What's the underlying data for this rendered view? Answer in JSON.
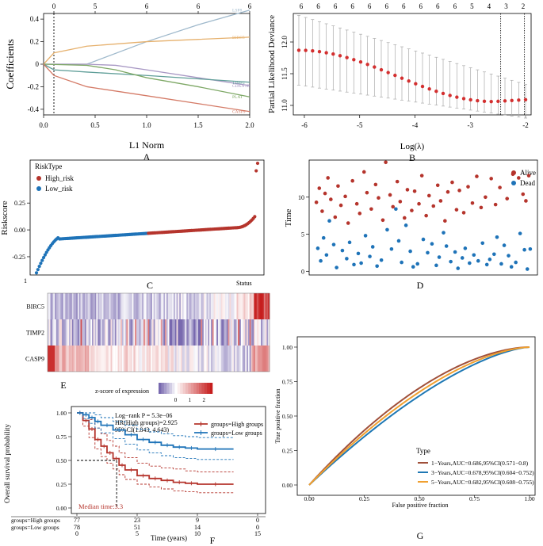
{
  "panel_labels": {
    "A": "A",
    "B": "B",
    "C": "C",
    "D": "D",
    "E": "E",
    "F": "F",
    "G": "G"
  },
  "colors": {
    "high": "#B5342C",
    "low": "#1E73B8",
    "bar_red": "#D32F2F",
    "grey": "#999999"
  },
  "chart_data": [
    {
      "id": "A",
      "type": "line",
      "title": "",
      "xlabel": "L1 Norm",
      "ylabel": "Coefficients",
      "xlim": [
        0,
        2.0
      ],
      "ylim": [
        -0.45,
        0.45
      ],
      "xticks": [
        "0.0",
        "0.5",
        "1.0",
        "1.5",
        "2.0"
      ],
      "yticks": [
        "-0.4",
        "-0.2",
        "0",
        "0.2",
        "0.4"
      ],
      "top_ticks": [
        {
          "x": 0.1,
          "label": "0"
        },
        {
          "x": 0.5,
          "label": "5"
        },
        {
          "x": 1.0,
          "label": "6"
        },
        {
          "x": 1.5,
          "label": "6"
        },
        {
          "x": 2.0,
          "label": "6"
        }
      ],
      "vline": 0.1,
      "series": [
        {
          "name": "LSP8",
          "color": "#9FB9CC",
          "x": [
            0,
            0.42,
            1.0,
            1.5,
            2.0
          ],
          "values": [
            0,
            0,
            0.2,
            0.35,
            0.48
          ]
        },
        {
          "name": "BIRC5",
          "color": "#E6B16E",
          "x": [
            0,
            0.1,
            0.42,
            1.0,
            1.5,
            2.0
          ],
          "values": [
            0,
            0.1,
            0.16,
            0.2,
            0.22,
            0.24
          ]
        },
        {
          "name": "CDKN1B",
          "color": "#A898C4",
          "x": [
            0,
            0.42,
            0.7,
            1.0,
            1.5,
            2.0
          ],
          "values": [
            0,
            0,
            -0.01,
            -0.05,
            -0.12,
            -0.19
          ]
        },
        {
          "name": "TIMP2",
          "color": "#5F9E98",
          "x": [
            0,
            0.1,
            0.42,
            1.0,
            1.5,
            2.0
          ],
          "values": [
            0,
            -0.05,
            -0.07,
            -0.1,
            -0.13,
            -0.16
          ]
        },
        {
          "name": "PLAT",
          "color": "#7EA866",
          "x": [
            0,
            0.42,
            0.7,
            1.0,
            1.5,
            2.0
          ],
          "values": [
            0,
            -0.01,
            -0.05,
            -0.12,
            -0.2,
            -0.29
          ]
        },
        {
          "name": "CASP9",
          "color": "#D47A66",
          "x": [
            0,
            0.1,
            0.42,
            1.0,
            1.5,
            2.0
          ],
          "values": [
            0,
            -0.1,
            -0.2,
            -0.28,
            -0.35,
            -0.42
          ]
        }
      ]
    },
    {
      "id": "B",
      "type": "scatter",
      "title": "",
      "xlabel": "Log(λ)",
      "ylabel": "Partial Likelihood Deviance",
      "xlim": [
        -6.2,
        -1.9
      ],
      "ylim": [
        10.85,
        12.45
      ],
      "xticks": [
        "-6",
        "-5",
        "-4",
        "-3",
        "-2"
      ],
      "yticks": [
        "11.0",
        "11.5",
        "12.0"
      ],
      "top_ticks": [
        "6",
        "6",
        "6",
        "6",
        "6",
        "6",
        "6",
        "6",
        "6",
        "6",
        "5",
        "4",
        "3",
        "2"
      ],
      "vlines": [
        -2.45,
        -2.02
      ],
      "lambda_range": [
        -6.1,
        -2.0
      ],
      "n_points": 34,
      "deviance": {
        "start": 11.87,
        "min": 11.06,
        "end": 11.09
      },
      "err_upper": {
        "start": 12.42,
        "end": 11.33
      },
      "err_lower": {
        "start": 11.32,
        "end": 10.8
      }
    },
    {
      "id": "C",
      "type": "scatter",
      "title": "",
      "ylabel": "Riskscore",
      "legend_title": "RiskType",
      "legend": [
        "High_risk",
        "Low_risk"
      ],
      "yticks": [
        "-0.25",
        "0.00",
        "0.25"
      ],
      "ylim": [
        -0.42,
        0.65
      ],
      "n": 155,
      "n_low": 78,
      "labels": {
        "left_tick": "1",
        "status": "Status"
      }
    },
    {
      "id": "D",
      "type": "scatter",
      "title": "",
      "ylabel": "Time",
      "legend": [
        "Alive",
        "Dead"
      ],
      "yticks": [
        "0",
        "5",
        "10"
      ],
      "ylim": [
        -0.5,
        15
      ],
      "alive_points": [
        [
          5,
          9.3
        ],
        [
          7,
          11.2
        ],
        [
          9,
          8.1
        ],
        [
          11,
          10.5
        ],
        [
          13,
          12.6
        ],
        [
          15,
          9.7
        ],
        [
          18,
          7.3
        ],
        [
          20,
          11.5
        ],
        [
          22,
          8.9
        ],
        [
          25,
          10.1
        ],
        [
          27,
          6.5
        ],
        [
          30,
          12.2
        ],
        [
          33,
          9.1
        ],
        [
          35,
          7.8
        ],
        [
          38,
          13.4
        ],
        [
          40,
          10.6
        ],
        [
          43,
          8.4
        ],
        [
          46,
          11.7
        ],
        [
          48,
          9.9
        ],
        [
          51,
          6.9
        ],
        [
          53,
          14.7
        ],
        [
          56,
          10.3
        ],
        [
          58,
          8.7
        ],
        [
          61,
          12.1
        ],
        [
          63,
          9.4
        ],
        [
          66,
          7.2
        ],
        [
          68,
          11.0
        ],
        [
          71,
          8.2
        ],
        [
          73,
          10.8
        ],
        [
          76,
          9.1
        ],
        [
          78,
          12.9
        ],
        [
          81,
          7.5
        ],
        [
          83,
          10.2
        ],
        [
          86,
          8.8
        ],
        [
          89,
          11.6
        ],
        [
          91,
          9.5
        ],
        [
          94,
          6.8
        ],
        [
          96,
          10.7
        ],
        [
          99,
          12.0
        ],
        [
          102,
          8.3
        ],
        [
          104,
          10.9
        ],
        [
          107,
          7.9
        ],
        [
          110,
          11.4
        ],
        [
          113,
          9.2
        ],
        [
          116,
          12.8
        ],
        [
          119,
          8.6
        ],
        [
          122,
          10.0
        ],
        [
          126,
          12.5
        ],
        [
          129,
          9.0
        ],
        [
          132,
          11.3
        ],
        [
          137,
          9.8
        ],
        [
          141,
          13.1
        ],
        [
          145,
          12.6
        ],
        [
          148,
          10.4
        ],
        [
          150,
          9.5
        ],
        [
          152,
          12.9
        ]
      ],
      "dead_points": [
        [
          6,
          3.1
        ],
        [
          8,
          1.4
        ],
        [
          10,
          4.5
        ],
        [
          12,
          2.2
        ],
        [
          14,
          6.8
        ],
        [
          17,
          3.6
        ],
        [
          19,
          0.5
        ],
        [
          23,
          2.8
        ],
        [
          26,
          1.7
        ],
        [
          28,
          3.9
        ],
        [
          31,
          0.9
        ],
        [
          34,
          2.4
        ],
        [
          36,
          1.1
        ],
        [
          39,
          4.8
        ],
        [
          42,
          2.0
        ],
        [
          44,
          3.3
        ],
        [
          47,
          0.7
        ],
        [
          50,
          1.5
        ],
        [
          54,
          5.6
        ],
        [
          57,
          3.0
        ],
        [
          60,
          8.4
        ],
        [
          62,
          4.1
        ],
        [
          64,
          1.2
        ],
        [
          67,
          6.2
        ],
        [
          70,
          2.7
        ],
        [
          72,
          0.6
        ],
        [
          75,
          1.0
        ],
        [
          79,
          4.3
        ],
        [
          82,
          2.5
        ],
        [
          85,
          3.7
        ],
        [
          88,
          0.8
        ],
        [
          90,
          1.9
        ],
        [
          93,
          5.2
        ],
        [
          95,
          3.4
        ],
        [
          98,
          1.3
        ],
        [
          101,
          2.6
        ],
        [
          103,
          0.4
        ],
        [
          106,
          1.8
        ],
        [
          108,
          3.1
        ],
        [
          111,
          1.1
        ],
        [
          114,
          2.2
        ],
        [
          117,
          1.4
        ],
        [
          120,
          3.8
        ],
        [
          123,
          0.9
        ],
        [
          125,
          1.6
        ],
        [
          128,
          2.3
        ],
        [
          130,
          4.6
        ],
        [
          133,
          1.0
        ],
        [
          135,
          3.5
        ],
        [
          138,
          2.1
        ],
        [
          140,
          0.6
        ],
        [
          143,
          1.2
        ],
        [
          146,
          5.1
        ],
        [
          149,
          2.9
        ],
        [
          151,
          0.3
        ],
        [
          153,
          3.0
        ]
      ]
    },
    {
      "id": "E",
      "type": "heatmap",
      "title": "",
      "rows": [
        "BIRC5",
        "TIMP2",
        "CASP9"
      ],
      "n_cols": 155,
      "legend_title": "z-score of expression",
      "legend_ticks": [
        "0",
        "1",
        "2"
      ],
      "low_color": "#5B3C99",
      "mid_color": "#FFFFFF",
      "high_color": "#C62828"
    },
    {
      "id": "F",
      "type": "line",
      "title": "",
      "xlabel": "Time (years)",
      "ylabel": "Overall survival probability",
      "xlim": [
        0,
        15
      ],
      "ylim": [
        0,
        1
      ],
      "xticks": [
        "0",
        "5",
        "10",
        "15"
      ],
      "yticks": [
        "0.00",
        "0.25",
        "0.50",
        "0.75",
        "1.00"
      ],
      "annotations": [
        "Log−rank P = 5.3e−06",
        "HR(High groups)=2.925",
        "95%CI(1.843, 4.643)",
        "Median time:3.3"
      ],
      "legend": [
        "groups=High groups",
        "groups=Low groups"
      ],
      "median_time": 3.3,
      "series": [
        {
          "name": "groups=High groups",
          "x": [
            0,
            0.5,
            1.0,
            1.5,
            2.0,
            2.5,
            3.0,
            3.5,
            4.0,
            5.0,
            6.0,
            7.0,
            8.0,
            9.0,
            10.0,
            13.0
          ],
          "values": [
            1.0,
            0.92,
            0.83,
            0.72,
            0.65,
            0.58,
            0.52,
            0.45,
            0.4,
            0.34,
            0.31,
            0.29,
            0.27,
            0.26,
            0.25,
            0.25
          ],
          "upper": [
            1.0,
            0.98,
            0.93,
            0.84,
            0.78,
            0.71,
            0.65,
            0.58,
            0.53,
            0.47,
            0.44,
            0.42,
            0.41,
            0.39,
            0.38,
            0.38
          ],
          "lower": [
            1.0,
            0.86,
            0.74,
            0.62,
            0.54,
            0.47,
            0.41,
            0.35,
            0.3,
            0.25,
            0.22,
            0.2,
            0.18,
            0.17,
            0.16,
            0.16
          ]
        },
        {
          "name": "groups=Low groups",
          "x": [
            0,
            0.5,
            1.0,
            1.5,
            2.0,
            3.0,
            4.0,
            5.0,
            6.0,
            7.0,
            8.0,
            9.0,
            10.0,
            13.0
          ],
          "values": [
            1.0,
            0.98,
            0.95,
            0.91,
            0.87,
            0.82,
            0.77,
            0.72,
            0.69,
            0.66,
            0.64,
            0.63,
            0.62,
            0.62
          ],
          "upper": [
            1.0,
            1.0,
            1.0,
            0.98,
            0.95,
            0.91,
            0.87,
            0.83,
            0.8,
            0.78,
            0.76,
            0.75,
            0.74,
            0.74
          ],
          "lower": [
            1.0,
            0.94,
            0.89,
            0.84,
            0.79,
            0.73,
            0.67,
            0.61,
            0.58,
            0.55,
            0.53,
            0.52,
            0.51,
            0.51
          ]
        }
      ],
      "risk_table": {
        "rows": [
          {
            "label": "groups=High groups",
            "counts": [
              "77",
              "23",
              "9",
              "0"
            ]
          },
          {
            "label": "groups=Low groups",
            "counts": [
              "78",
              "51",
              "14",
              "0"
            ]
          }
        ],
        "times": [
          "0",
          "5",
          "10",
          "15"
        ]
      }
    },
    {
      "id": "G",
      "type": "line",
      "title": "",
      "xlabel": "False positive fraction",
      "ylabel": "True positive fraction",
      "xlim": [
        0,
        1
      ],
      "ylim": [
        0,
        1
      ],
      "xticks": [
        "0.00",
        "0.25",
        "0.50",
        "0.75",
        "1.00"
      ],
      "yticks": [
        "0.00",
        "0.25",
        "0.50",
        "0.75",
        "1.00"
      ],
      "legend_title": "Type",
      "series": [
        {
          "name": "1−Years,AUC=0.686,95%CI(0.571−0.8)",
          "color": "#A0503A",
          "shape": 1.75
        },
        {
          "name": "3−Years,AUC=0.678,95%CI(0.604−0.752)",
          "color": "#1F78B4",
          "shape": 1.5
        },
        {
          "name": "5−Years,AUC=0.682,95%CI(0.608−0.755)",
          "color": "#F0A030",
          "shape": 1.62
        }
      ]
    }
  ]
}
